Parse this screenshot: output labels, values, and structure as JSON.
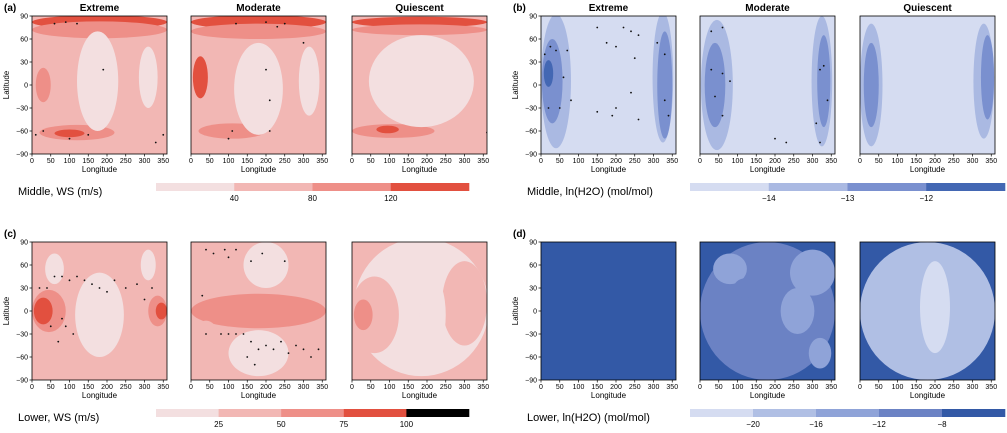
{
  "colors": {
    "ws": [
      "#f3dfe0",
      "#f2b7b4",
      "#ee8f88",
      "#e2503f"
    ],
    "h2o_mid": [
      "#d5dcf1",
      "#aab9e2",
      "#7a90cf",
      "#4367b3"
    ],
    "h2o_low": [
      "#d5dcf1",
      "#b0bfe4",
      "#8fa3d8",
      "#6b82c4",
      "#3359a6"
    ],
    "stipple": "#111111",
    "frame": "#000000"
  },
  "axes": {
    "x_ticks": [
      "0",
      "50",
      "100",
      "150",
      "200",
      "250",
      "300",
      "350"
    ],
    "y_ticks": [
      "90",
      "60",
      "30",
      "0",
      "−30",
      "−60",
      "−90"
    ],
    "xlabel": "Longitude",
    "ylabel": "Latitude",
    "xlim": [
      0,
      360
    ],
    "ylim": [
      -90,
      90
    ]
  },
  "columns": [
    "Extreme",
    "Moderate",
    "Quiescent"
  ],
  "chart_data": [
    {
      "type": "heatmap",
      "panel_label": "(a)",
      "columns": [
        "Extreme",
        "Moderate",
        "Quiescent"
      ],
      "xlabel": "Longitude",
      "ylabel": "Latitude",
      "xlim": [
        0,
        360
      ],
      "ylim": [
        -90,
        90
      ],
      "colorbar_label": "Middle, WS (m/s)",
      "colorbar_levels": [
        0,
        40,
        80,
        120,
        160
      ],
      "colorbar_ticks": [
        "40",
        "80",
        "120"
      ],
      "palette": "ws",
      "background_level": 1,
      "blobs": [
        [
          {
            "lon": 180,
            "lat": 82,
            "w": 360,
            "h": 18,
            "level": 3
          },
          {
            "lon": 180,
            "lat": 72,
            "w": 360,
            "h": 22,
            "level": 2
          },
          {
            "lon": 120,
            "lat": -62,
            "w": 200,
            "h": 20,
            "level": 2
          },
          {
            "lon": 100,
            "lat": -63,
            "w": 80,
            "h": 10,
            "level": 3
          },
          {
            "lon": 30,
            "lat": 0,
            "w": 40,
            "h": 45,
            "level": 2
          },
          {
            "lon": 175,
            "lat": 5,
            "w": 110,
            "h": 130,
            "level": 0
          },
          {
            "lon": 310,
            "lat": 10,
            "w": 50,
            "h": 80,
            "level": 0
          }
        ],
        [
          {
            "lon": 180,
            "lat": 82,
            "w": 360,
            "h": 18,
            "level": 3
          },
          {
            "lon": 180,
            "lat": 70,
            "w": 360,
            "h": 20,
            "level": 2
          },
          {
            "lon": 110,
            "lat": -60,
            "w": 180,
            "h": 20,
            "level": 2
          },
          {
            "lon": 25,
            "lat": 10,
            "w": 40,
            "h": 55,
            "level": 3
          },
          {
            "lon": 180,
            "lat": -5,
            "w": 130,
            "h": 120,
            "level": 0
          },
          {
            "lon": 315,
            "lat": 5,
            "w": 55,
            "h": 90,
            "level": 0
          }
        ],
        [
          {
            "lon": 180,
            "lat": 82,
            "w": 360,
            "h": 14,
            "level": 3
          },
          {
            "lon": 180,
            "lat": 72,
            "w": 360,
            "h": 14,
            "level": 2
          },
          {
            "lon": 110,
            "lat": -60,
            "w": 220,
            "h": 18,
            "level": 2
          },
          {
            "lon": 95,
            "lat": -58,
            "w": 60,
            "h": 10,
            "level": 3
          },
          {
            "lon": 185,
            "lat": 5,
            "w": 280,
            "h": 120,
            "level": 0
          }
        ]
      ],
      "stipple": [
        [
          [
            120,
            80
          ],
          [
            60,
            80
          ],
          [
            90,
            82
          ],
          [
            190,
            20
          ],
          [
            10,
            -65
          ],
          [
            30,
            -60
          ],
          [
            100,
            -70
          ],
          [
            150,
            -65
          ],
          [
            350,
            -65
          ],
          [
            330,
            -75
          ]
        ],
        [
          [
            120,
            80
          ],
          [
            200,
            82
          ],
          [
            230,
            76
          ],
          [
            250,
            80
          ],
          [
            300,
            55
          ],
          [
            200,
            20
          ],
          [
            210,
            -20
          ],
          [
            210,
            -60
          ],
          [
            110,
            -60
          ],
          [
            100,
            -70
          ]
        ],
        [
          [
            360,
            -62
          ]
        ]
      ]
    },
    {
      "type": "heatmap",
      "panel_label": "(b)",
      "columns": [
        "Extreme",
        "Moderate",
        "Quiescent"
      ],
      "xlabel": "Longitude",
      "ylabel": "Latitude",
      "xlim": [
        0,
        360
      ],
      "ylim": [
        -90,
        90
      ],
      "colorbar_label": "Middle, ln(H2O) (mol/mol)",
      "colorbar_levels": [
        -15,
        -14,
        -13,
        -12,
        -11
      ],
      "colorbar_ticks": [
        "−14",
        "−13",
        "−12"
      ],
      "palette": "h2o_mid",
      "background_level": 0,
      "blobs": [
        [
          {
            "lon": 40,
            "lat": 5,
            "w": 80,
            "h": 175,
            "level": 1
          },
          {
            "lon": 30,
            "lat": 5,
            "w": 55,
            "h": 110,
            "level": 2
          },
          {
            "lon": 20,
            "lat": 15,
            "w": 25,
            "h": 35,
            "level": 3
          },
          {
            "lon": 325,
            "lat": 10,
            "w": 55,
            "h": 170,
            "level": 1
          },
          {
            "lon": 330,
            "lat": 0,
            "w": 40,
            "h": 140,
            "level": 2
          }
        ],
        [
          {
            "lon": 45,
            "lat": 0,
            "w": 85,
            "h": 170,
            "level": 1
          },
          {
            "lon": 40,
            "lat": 0,
            "w": 55,
            "h": 110,
            "level": 2
          },
          {
            "lon": 325,
            "lat": 5,
            "w": 55,
            "h": 170,
            "level": 1
          },
          {
            "lon": 330,
            "lat": 5,
            "w": 35,
            "h": 120,
            "level": 2
          }
        ],
        [
          {
            "lon": 30,
            "lat": 0,
            "w": 60,
            "h": 160,
            "level": 1
          },
          {
            "lon": 30,
            "lat": 0,
            "w": 40,
            "h": 110,
            "level": 2
          },
          {
            "lon": 330,
            "lat": 5,
            "w": 55,
            "h": 150,
            "level": 1
          },
          {
            "lon": 340,
            "lat": 10,
            "w": 35,
            "h": 110,
            "level": 2
          }
        ]
      ],
      "stipple": [
        [
          [
            10,
            40
          ],
          [
            25,
            50
          ],
          [
            40,
            45
          ],
          [
            70,
            45
          ],
          [
            20,
            -30
          ],
          [
            50,
            -30
          ],
          [
            80,
            -20
          ],
          [
            60,
            10
          ],
          [
            150,
            75
          ],
          [
            220,
            75
          ],
          [
            240,
            70
          ],
          [
            260,
            65
          ],
          [
            175,
            55
          ],
          [
            200,
            50
          ],
          [
            250,
            35
          ],
          [
            190,
            -40
          ],
          [
            200,
            -30
          ],
          [
            240,
            -10
          ],
          [
            260,
            -45
          ],
          [
            150,
            -35
          ],
          [
            330,
            -20
          ],
          [
            340,
            -40
          ],
          [
            330,
            40
          ],
          [
            310,
            55
          ]
        ],
        [
          [
            30,
            70
          ],
          [
            60,
            75
          ],
          [
            30,
            20
          ],
          [
            60,
            15
          ],
          [
            40,
            -15
          ],
          [
            60,
            -40
          ],
          [
            80,
            5
          ],
          [
            320,
            20
          ],
          [
            330,
            25
          ],
          [
            340,
            -20
          ],
          [
            310,
            -50
          ],
          [
            320,
            -75
          ],
          [
            200,
            -70
          ],
          [
            230,
            -75
          ]
        ],
        []
      ]
    },
    {
      "type": "heatmap",
      "panel_label": "(c)",
      "columns": [
        "Extreme",
        "Moderate",
        "Quiescent"
      ],
      "xlabel": "Longitude",
      "ylabel": "Latitude",
      "xlim": [
        0,
        360
      ],
      "ylim": [
        -90,
        90
      ],
      "colorbar_label": "Lower, WS (m/s)",
      "colorbar_levels": [
        0,
        25,
        50,
        75,
        100,
        125
      ],
      "colorbar_ticks": [
        "25",
        "50",
        "75",
        "100"
      ],
      "palette": "ws",
      "background_level": 1,
      "blobs": [
        [
          {
            "lon": 45,
            "lat": 0,
            "w": 90,
            "h": 55,
            "level": 2
          },
          {
            "lon": 30,
            "lat": 0,
            "w": 50,
            "h": 35,
            "level": 3
          },
          {
            "lon": 335,
            "lat": 0,
            "w": 50,
            "h": 40,
            "level": 2
          },
          {
            "lon": 345,
            "lat": 0,
            "w": 30,
            "h": 22,
            "level": 3
          },
          {
            "lon": 180,
            "lat": -5,
            "w": 130,
            "h": 110,
            "level": 0
          },
          {
            "lon": 60,
            "lat": 55,
            "w": 50,
            "h": 40,
            "level": 0
          },
          {
            "lon": 310,
            "lat": 60,
            "w": 40,
            "h": 40,
            "level": 0
          }
        ],
        [
          {
            "lon": 180,
            "lat": 0,
            "w": 360,
            "h": 45,
            "level": 2
          },
          {
            "lon": 200,
            "lat": 60,
            "w": 120,
            "h": 60,
            "level": 0
          },
          {
            "lon": 180,
            "lat": -55,
            "w": 160,
            "h": 60,
            "level": 0
          },
          {
            "lon": 40,
            "lat": -30,
            "w": 60,
            "h": 35,
            "level": 1
          }
        ],
        [
          {
            "lon": 185,
            "lat": 5,
            "w": 360,
            "h": 180,
            "level": 0
          },
          {
            "lon": 60,
            "lat": -5,
            "w": 130,
            "h": 100,
            "level": 1
          },
          {
            "lon": 300,
            "lat": 10,
            "w": 120,
            "h": 110,
            "level": 1
          },
          {
            "lon": 30,
            "lat": -5,
            "w": 50,
            "h": 40,
            "level": 2
          },
          {
            "lon": 215,
            "lat": -5,
            "w": 70,
            "h": 100,
            "level": 0
          }
        ]
      ],
      "stipple": [
        [
          [
            20,
            30
          ],
          [
            40,
            30
          ],
          [
            60,
            45
          ],
          [
            80,
            45
          ],
          [
            100,
            40
          ],
          [
            120,
            45
          ],
          [
            140,
            40
          ],
          [
            160,
            35
          ],
          [
            180,
            30
          ],
          [
            200,
            25
          ],
          [
            220,
            40
          ],
          [
            250,
            30
          ],
          [
            280,
            35
          ],
          [
            320,
            30
          ],
          [
            50,
            -20
          ],
          [
            90,
            -20
          ],
          [
            110,
            -30
          ],
          [
            70,
            -40
          ],
          [
            80,
            -10
          ],
          [
            300,
            15
          ]
        ],
        [
          [
            40,
            80
          ],
          [
            60,
            75
          ],
          [
            90,
            80
          ],
          [
            100,
            70
          ],
          [
            120,
            80
          ],
          [
            160,
            65
          ],
          [
            190,
            75
          ],
          [
            250,
            65
          ],
          [
            30,
            20
          ],
          [
            40,
            -30
          ],
          [
            80,
            -30
          ],
          [
            100,
            -30
          ],
          [
            120,
            -30
          ],
          [
            140,
            -30
          ],
          [
            160,
            -40
          ],
          [
            180,
            -50
          ],
          [
            200,
            -45
          ],
          [
            220,
            -50
          ],
          [
            240,
            -40
          ],
          [
            260,
            -55
          ],
          [
            280,
            -45
          ],
          [
            300,
            -50
          ],
          [
            320,
            -60
          ],
          [
            340,
            -50
          ],
          [
            150,
            -60
          ],
          [
            170,
            -70
          ]
        ],
        []
      ]
    },
    {
      "type": "heatmap",
      "panel_label": "(d)",
      "columns": [
        "Extreme",
        "Moderate",
        "Quiescent"
      ],
      "xlabel": "Longitude",
      "ylabel": "Latitude",
      "xlim": [
        0,
        360
      ],
      "ylim": [
        -90,
        90
      ],
      "colorbar_label": "Lower, ln(H2O) (mol/mol)",
      "colorbar_levels": [
        -24,
        -20,
        -16,
        -12,
        -8,
        -4
      ],
      "colorbar_ticks": [
        "−20",
        "−16",
        "−12",
        "−8"
      ],
      "palette": "h2o_low",
      "background_level": 4,
      "blobs": [
        [],
        [
          {
            "lon": 180,
            "lat": 0,
            "w": 360,
            "h": 180,
            "level": 3
          },
          {
            "lon": 300,
            "lat": 50,
            "w": 120,
            "h": 60,
            "level": 2
          },
          {
            "lon": 260,
            "lat": 0,
            "w": 90,
            "h": 60,
            "level": 2
          },
          {
            "lon": 80,
            "lat": 55,
            "w": 90,
            "h": 40,
            "level": 2
          },
          {
            "lon": 120,
            "lat": 30,
            "w": 60,
            "h": 25,
            "level": 3
          },
          {
            "lon": 320,
            "lat": -55,
            "w": 60,
            "h": 40,
            "level": 2
          }
        ],
        [
          {
            "lon": 180,
            "lat": 0,
            "w": 360,
            "h": 180,
            "level": 1
          },
          {
            "lon": 200,
            "lat": 5,
            "w": 80,
            "h": 120,
            "level": 0
          }
        ]
      ],
      "stipple": [
        [],
        [],
        []
      ]
    }
  ]
}
